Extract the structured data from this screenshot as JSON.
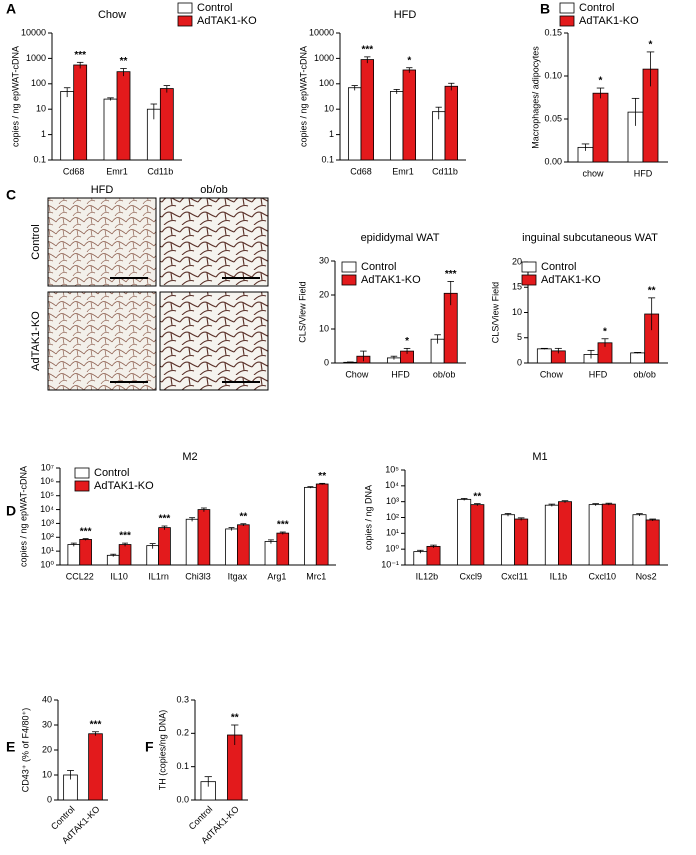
{
  "panel_labels": [
    "A",
    "B",
    "C",
    "D",
    "E",
    "F"
  ],
  "images": {
    "columns": [
      "HFD",
      "ob/ob"
    ],
    "rows": [
      "Control",
      "AdTAK1-KO"
    ]
  },
  "chart_data": [
    {
      "type": "bar",
      "title": "Chow",
      "log": true,
      "ylabel": "copies / ng epWAT-cDNA",
      "categories": [
        "Cd68",
        "Emr1",
        "Cd11b"
      ],
      "ylim": [
        0.1,
        10000
      ],
      "yticks": [
        0.1,
        1,
        10,
        100,
        1000,
        10000
      ],
      "series": [
        {
          "name": "Control",
          "color": "#ffffff",
          "values": [
            50,
            25,
            10
          ],
          "errors": [
            20,
            3,
            6
          ]
        },
        {
          "name": "AdTAK1-KO",
          "color": "#e31a1c",
          "values": [
            550,
            300,
            65
          ],
          "errors": [
            150,
            100,
            20
          ],
          "annotations": [
            "***",
            "**",
            null
          ]
        }
      ]
    },
    {
      "type": "bar",
      "title": "HFD",
      "log": true,
      "ylabel": "copies / ng epWAT-cDNA",
      "categories": [
        "Cd68",
        "Emr1",
        "Cd11b"
      ],
      "ylim": [
        0.1,
        10000
      ],
      "yticks": [
        0.1,
        1,
        10,
        100,
        1000,
        10000
      ],
      "series": [
        {
          "color": "#ffffff",
          "values": [
            70,
            50,
            8
          ],
          "errors": [
            15,
            10,
            4
          ]
        },
        {
          "color": "#e31a1c",
          "values": [
            900,
            350,
            80
          ],
          "errors": [
            250,
            80,
            25
          ],
          "annotations": [
            "***",
            "*",
            null
          ]
        }
      ]
    },
    {
      "type": "bar",
      "log": false,
      "ylabel": "Macrophages/ adipocytes",
      "categories": [
        "chow",
        "HFD"
      ],
      "ylim": [
        0,
        0.15
      ],
      "yticks": [
        {
          "value": 0,
          "label": "0.00"
        },
        0.05,
        {
          "value": 0.1,
          "label": "0.10"
        },
        0.15
      ],
      "series": [
        {
          "name": "Control",
          "color": "#ffffff",
          "values": [
            0.017,
            0.058
          ],
          "errors": [
            0.004,
            0.016
          ]
        },
        {
          "name": "AdTAK1-KO",
          "color": "#e31a1c",
          "values": [
            0.08,
            0.108
          ],
          "errors": [
            0.006,
            0.02
          ],
          "annotations": [
            "*",
            "*"
          ]
        }
      ]
    },
    {
      "type": "bar",
      "title": "epididymal WAT",
      "log": false,
      "ylabel": "CLS/View Field",
      "categories": [
        "Chow",
        "HFD",
        "ob/ob"
      ],
      "ylim": [
        0,
        30
      ],
      "yticks": [
        0,
        10,
        20,
        30
      ],
      "series": [
        {
          "name": "Control",
          "color": "#ffffff",
          "values": [
            0.2,
            1.5,
            7
          ],
          "errors": [
            0.1,
            0.5,
            1.3
          ]
        },
        {
          "name": "AdTAK1-KO",
          "color": "#e31a1c",
          "values": [
            2,
            3.5,
            20.5
          ],
          "errors": [
            1.5,
            0.8,
            3.5
          ],
          "annotations": [
            null,
            "*",
            "***"
          ]
        }
      ]
    },
    {
      "type": "bar",
      "title": "inguinal subcutaneous WAT",
      "log": false,
      "ylabel": "CLS/View Field",
      "categories": [
        "Chow",
        "HFD",
        "ob/ob"
      ],
      "ylim": [
        0,
        20
      ],
      "yticks": [
        0,
        5,
        10,
        15,
        20
      ],
      "series": [
        {
          "name": "Control",
          "color": "#ffffff",
          "values": [
            2.8,
            1.7,
            2
          ],
          "errors": [
            0.1,
            0.8,
            0.1
          ]
        },
        {
          "name": "AdTAK1-KO",
          "color": "#e31a1c",
          "values": [
            2.4,
            4,
            9.7
          ],
          "errors": [
            0.5,
            0.8,
            3.2
          ],
          "annotations": [
            null,
            "*",
            "**"
          ]
        }
      ]
    },
    {
      "type": "bar",
      "title": "M2",
      "log": true,
      "ylabel": "copies / ng epWAT-cDNA",
      "categories": [
        "CCL22",
        "IL10",
        "IL1rn",
        "Chi3l3",
        "Itgax",
        "Arg1",
        "Mrc1"
      ],
      "ylim": [
        1,
        10000000
      ],
      "yticks": [
        {
          "value": 1,
          "label": "10⁰"
        },
        {
          "value": 10,
          "label": "10¹"
        },
        {
          "value": 100,
          "label": "10²"
        },
        {
          "value": 1000,
          "label": "10³"
        },
        {
          "value": 10000,
          "label": "10⁴"
        },
        {
          "value": 100000,
          "label": "10⁵"
        },
        {
          "value": 1000000,
          "label": "10⁶"
        },
        {
          "value": 10000000,
          "label": "10⁷"
        }
      ],
      "series": [
        {
          "name": "Control",
          "color": "#ffffff",
          "values": [
            30,
            5,
            25,
            2000,
            400,
            50,
            400000
          ],
          "errors": [
            8,
            1,
            10,
            600,
            100,
            15,
            50000
          ]
        },
        {
          "name": "AdTAK1-KO",
          "color": "#e31a1c",
          "values": [
            70,
            30,
            500,
            10000,
            800,
            200,
            700000
          ],
          "errors": [
            10,
            8,
            150,
            3000,
            150,
            40,
            80000
          ],
          "annotations": [
            "***",
            "***",
            "***",
            null,
            "**",
            "***",
            "**"
          ]
        }
      ]
    },
    {
      "type": "bar",
      "title": "M1",
      "log": true,
      "ylabel": "copies / ng DNA",
      "categories": [
        "IL12b",
        "Cxcl9",
        "Cxcl11",
        "IL1b",
        "Cxcl10",
        "Nos2"
      ],
      "ylim": [
        0.1,
        100000
      ],
      "yticks": [
        {
          "value": 0.1,
          "label": "10⁻¹"
        },
        {
          "value": 1,
          "label": "10⁰"
        },
        {
          "value": 10,
          "label": "10¹"
        },
        {
          "value": 100,
          "label": "10²"
        },
        {
          "value": 1000,
          "label": "10³"
        },
        {
          "value": 10000,
          "label": "10⁴"
        },
        {
          "value": 100000,
          "label": "10⁵"
        }
      ],
      "series": [
        {
          "color": "#ffffff",
          "values": [
            0.7,
            1400,
            150,
            600,
            650,
            150
          ],
          "errors": [
            0.15,
            200,
            30,
            100,
            100,
            25
          ]
        },
        {
          "color": "#e31a1c",
          "values": [
            1.5,
            650,
            80,
            1000,
            700,
            70
          ],
          "errors": [
            0.3,
            100,
            15,
            150,
            100,
            10
          ],
          "annotations": [
            null,
            "**",
            null,
            null,
            null,
            null
          ]
        }
      ]
    },
    {
      "type": "bar",
      "log": false,
      "ylabel": "CD43⁺ (% of F4/80⁺)",
      "categories": [
        "Control",
        "AdTAK1-KO"
      ],
      "colors": [
        "#ffffff",
        "#e31a1c"
      ],
      "values": [
        10,
        26.5
      ],
      "errors": [
        1.8,
        0.8
      ],
      "annotations": [
        null,
        "***"
      ],
      "ylim": [
        0,
        40
      ],
      "yticks": [
        0,
        10,
        20,
        30,
        40
      ]
    },
    {
      "type": "bar",
      "log": false,
      "ylabel": "TH (copies/ng DNA)",
      "categories": [
        "Control",
        "AdTAK1-KO"
      ],
      "colors": [
        "#ffffff",
        "#e31a1c"
      ],
      "values": [
        0.055,
        0.195
      ],
      "errors": [
        0.015,
        0.03
      ],
      "annotations": [
        null,
        "**"
      ],
      "ylim": [
        0,
        0.3
      ],
      "yticks": [
        {
          "value": 0,
          "label": "0.0"
        },
        0.1,
        0.2,
        0.3
      ]
    }
  ]
}
